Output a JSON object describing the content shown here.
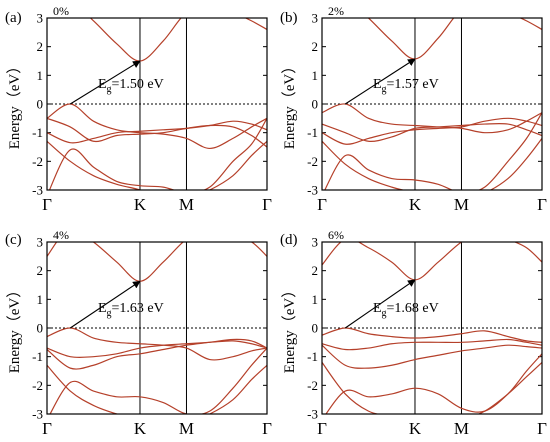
{
  "figure": {
    "band_color": "#b5402a",
    "axis_color": "#000000",
    "arrow_color": "#000000",
    "fermi_line_color": "#000000",
    "fermi_line_style": "dotted"
  },
  "chart_data": [
    {
      "type": "line",
      "panel_label": "(a)",
      "strain_label": "0%",
      "ylabel": "Energy（eV）",
      "ylim": [
        -3,
        3
      ],
      "yticks": [
        "3",
        "2",
        "1",
        "0",
        "-1",
        "-2",
        "-3"
      ],
      "xticks": [
        "Γ",
        "K",
        "M",
        "Γ"
      ],
      "x_tick_positions": [
        0,
        1,
        1.5,
        2.366
      ],
      "gap_label_main": "E",
      "gap_label_sub": "g",
      "gap_label_value": "=1.50 eV",
      "gap_ev": 1.5,
      "vbm": {
        "x": 0.25,
        "y": 0.0
      },
      "cbm": {
        "x": 1.0,
        "y": 1.5
      },
      "series": [
        {
          "x": [
            0,
            0.25,
            0.5,
            0.75,
            1.0,
            1.25,
            1.5,
            1.75,
            2.0,
            2.2,
            2.366
          ],
          "y": [
            -3.2,
            -1.6,
            -2.2,
            -2.7,
            -2.85,
            -2.9,
            -3.1,
            -2.9,
            -2.0,
            -1.4,
            -0.5
          ]
        },
        {
          "x": [
            0,
            0.25,
            0.5,
            0.75,
            1.0,
            1.25,
            1.5,
            1.75,
            2.0,
            2.2,
            2.366
          ],
          "y": [
            -0.5,
            0.0,
            -0.6,
            -0.9,
            -1.0,
            -1.05,
            -1.2,
            -1.55,
            -1.2,
            -0.8,
            -0.5
          ]
        },
        {
          "x": [
            0,
            0.25,
            0.5,
            0.75,
            1.0,
            1.25,
            1.5,
            1.75,
            2.0,
            2.2,
            2.366
          ],
          "y": [
            -0.5,
            -0.8,
            -1.3,
            -1.1,
            -1.05,
            -1.0,
            -0.85,
            -0.75,
            -0.8,
            -1.1,
            -1.5
          ]
        },
        {
          "x": [
            0,
            0.25,
            0.5,
            0.75,
            1.0,
            1.25,
            1.5,
            1.75,
            2.0,
            2.2,
            2.366
          ],
          "y": [
            -1.0,
            -1.35,
            -1.2,
            -1.0,
            -0.95,
            -0.9,
            -0.85,
            -0.75,
            -0.6,
            -0.7,
            -0.9
          ]
        },
        {
          "x": [
            0,
            0.25,
            0.5,
            0.75,
            1.0,
            1.25,
            1.5,
            1.75,
            2.0,
            2.2,
            2.366
          ],
          "y": [
            3.2,
            3.6,
            2.9,
            2.1,
            1.5,
            2.2,
            3.2,
            3.5,
            3.2,
            2.9,
            2.6
          ]
        },
        {
          "x": [
            0,
            0.25,
            0.5,
            0.75,
            1.0,
            1.25,
            1.5,
            1.75,
            2.0,
            2.2,
            2.366
          ],
          "y": [
            -1.3,
            -2.0,
            -2.5,
            -2.8,
            -3.0,
            -3.3,
            -3.3,
            -3.0,
            -2.5,
            -1.8,
            -1.3
          ]
        }
      ]
    },
    {
      "type": "line",
      "panel_label": "(b)",
      "strain_label": "2%",
      "ylabel": "Energy（eV）",
      "ylim": [
        -3,
        3
      ],
      "yticks": [
        "3",
        "2",
        "1",
        "0",
        "-1",
        "-2",
        "-3"
      ],
      "xticks": [
        "Γ",
        "K",
        "M",
        "Γ"
      ],
      "x_tick_positions": [
        0,
        1,
        1.5,
        2.366
      ],
      "gap_label_main": "E",
      "gap_label_sub": "g",
      "gap_label_value": "=1.57 eV",
      "gap_ev": 1.57,
      "vbm": {
        "x": 0.25,
        "y": 0.0
      },
      "cbm": {
        "x": 1.0,
        "y": 1.57
      },
      "series": [
        {
          "x": [
            0,
            0.25,
            0.5,
            0.75,
            1.0,
            1.25,
            1.5,
            1.75,
            2.0,
            2.2,
            2.366
          ],
          "y": [
            -3.2,
            -1.8,
            -2.3,
            -2.6,
            -2.65,
            -2.8,
            -3.1,
            -2.9,
            -2.0,
            -1.2,
            -0.3
          ]
        },
        {
          "x": [
            0,
            0.25,
            0.5,
            0.75,
            1.0,
            1.25,
            1.5,
            1.75,
            2.0,
            2.2,
            2.366
          ],
          "y": [
            -0.3,
            0.0,
            -0.5,
            -0.7,
            -0.75,
            -0.8,
            -0.85,
            -1.0,
            -0.9,
            -0.6,
            -0.3
          ]
        },
        {
          "x": [
            0,
            0.25,
            0.5,
            0.75,
            1.0,
            1.25,
            1.5,
            1.75,
            2.0,
            2.2,
            2.366
          ],
          "y": [
            -0.7,
            -1.0,
            -1.3,
            -1.15,
            -0.85,
            -0.8,
            -0.75,
            -0.7,
            -0.7,
            -0.9,
            -1.1
          ]
        },
        {
          "x": [
            0,
            0.25,
            0.5,
            0.75,
            1.0,
            1.25,
            1.5,
            1.75,
            2.0,
            2.2,
            2.366
          ],
          "y": [
            -1.0,
            -1.4,
            -1.2,
            -1.0,
            -0.9,
            -0.85,
            -0.8,
            -0.6,
            -0.5,
            -0.6,
            -0.75
          ]
        },
        {
          "x": [
            0,
            0.25,
            0.5,
            0.75,
            1.0,
            1.25,
            1.5,
            1.75,
            2.0,
            2.2,
            2.366
          ],
          "y": [
            3.2,
            3.7,
            3.0,
            2.2,
            1.57,
            2.3,
            3.3,
            3.6,
            3.2,
            2.9,
            2.6
          ]
        },
        {
          "x": [
            0,
            0.25,
            0.5,
            0.75,
            1.0,
            1.25,
            1.5,
            1.75,
            2.0,
            2.2,
            2.366
          ],
          "y": [
            -1.3,
            -2.1,
            -2.6,
            -2.9,
            -3.1,
            -3.3,
            -3.3,
            -3.1,
            -2.6,
            -1.9,
            -1.2
          ]
        }
      ]
    },
    {
      "type": "line",
      "panel_label": "(c)",
      "strain_label": "4%",
      "ylabel": "Energy（eV）",
      "ylim": [
        -3,
        3
      ],
      "yticks": [
        "3",
        "2",
        "1",
        "0",
        "-1",
        "-2",
        "-3"
      ],
      "xticks": [
        "Γ",
        "K",
        "M",
        "Γ"
      ],
      "x_tick_positions": [
        0,
        1,
        1.5,
        2.366
      ],
      "gap_label_main": "E",
      "gap_label_sub": "g",
      "gap_label_value": "=1.63 eV",
      "gap_ev": 1.63,
      "vbm": {
        "x": 0.25,
        "y": 0.0
      },
      "cbm": {
        "x": 1.0,
        "y": 1.63
      },
      "series": [
        {
          "x": [
            0,
            0.25,
            0.5,
            0.75,
            1.0,
            1.25,
            1.5,
            1.75,
            2.0,
            2.2,
            2.366
          ],
          "y": [
            -3.2,
            -1.9,
            -2.2,
            -2.4,
            -2.4,
            -2.6,
            -3.0,
            -2.9,
            -2.1,
            -1.3,
            -0.7
          ]
        },
        {
          "x": [
            0,
            0.25,
            0.5,
            0.75,
            1.0,
            1.25,
            1.5,
            1.75,
            2.0,
            2.2,
            2.366
          ],
          "y": [
            -0.3,
            0.0,
            -0.35,
            -0.5,
            -0.55,
            -0.6,
            -0.7,
            -1.1,
            -1.0,
            -0.8,
            -0.7
          ]
        },
        {
          "x": [
            0,
            0.25,
            0.5,
            0.75,
            1.0,
            1.25,
            1.5,
            1.75,
            2.0,
            2.2,
            2.366
          ],
          "y": [
            -0.7,
            -1.0,
            -1.0,
            -0.9,
            -0.7,
            -0.6,
            -0.55,
            -0.5,
            -0.45,
            -0.55,
            -0.7
          ]
        },
        {
          "x": [
            0,
            0.25,
            0.5,
            0.75,
            1.0,
            1.25,
            1.5,
            1.75,
            2.0,
            2.2,
            2.366
          ],
          "y": [
            -0.75,
            -1.4,
            -1.3,
            -1.0,
            -0.9,
            -0.75,
            -0.6,
            -0.5,
            -0.4,
            -0.45,
            -0.7
          ]
        },
        {
          "x": [
            0,
            0.25,
            0.5,
            0.75,
            1.0,
            1.25,
            1.5,
            1.75,
            2.0,
            2.2,
            2.366
          ],
          "y": [
            2.5,
            3.5,
            3.0,
            2.3,
            1.63,
            2.3,
            3.1,
            3.5,
            3.2,
            3.0,
            2.5
          ]
        },
        {
          "x": [
            0,
            0.25,
            0.5,
            0.75,
            1.0,
            1.25,
            1.5,
            1.75,
            2.0,
            2.2,
            2.366
          ],
          "y": [
            -1.3,
            -2.2,
            -2.7,
            -3.0,
            -3.2,
            -3.3,
            -3.3,
            -3.0,
            -2.5,
            -1.8,
            -1.3
          ]
        }
      ]
    },
    {
      "type": "line",
      "panel_label": "(d)",
      "strain_label": "6%",
      "ylabel": "Energy（eV）",
      "ylim": [
        -3,
        3
      ],
      "yticks": [
        "3",
        "2",
        "1",
        "0",
        "-1",
        "-2",
        "-3"
      ],
      "xticks": [
        "Γ",
        "K",
        "M",
        "Γ"
      ],
      "x_tick_positions": [
        0,
        1,
        1.5,
        2.366
      ],
      "gap_label_main": "E",
      "gap_label_sub": "g",
      "gap_label_value": "=1.68 eV",
      "gap_ev": 1.68,
      "vbm": {
        "x": 0.25,
        "y": 0.0
      },
      "cbm": {
        "x": 1.0,
        "y": 1.68
      },
      "series": [
        {
          "x": [
            0,
            0.25,
            0.5,
            0.75,
            1.0,
            1.25,
            1.5,
            1.75,
            2.0,
            2.2,
            2.366
          ],
          "y": [
            -3.2,
            -2.2,
            -2.4,
            -2.3,
            -2.1,
            -2.3,
            -2.8,
            -2.9,
            -2.3,
            -1.5,
            -0.9
          ]
        },
        {
          "x": [
            0,
            0.25,
            0.5,
            0.75,
            1.0,
            1.25,
            1.5,
            1.75,
            2.0,
            2.2,
            2.366
          ],
          "y": [
            -0.25,
            0.0,
            -0.2,
            -0.3,
            -0.35,
            -0.3,
            -0.2,
            -0.1,
            -0.3,
            -0.45,
            -0.5
          ]
        },
        {
          "x": [
            0,
            0.25,
            0.5,
            0.75,
            1.0,
            1.25,
            1.5,
            1.75,
            2.0,
            2.2,
            2.366
          ],
          "y": [
            -0.55,
            -0.75,
            -0.7,
            -0.55,
            -0.5,
            -0.5,
            -0.5,
            -0.45,
            -0.4,
            -0.5,
            -0.6
          ]
        },
        {
          "x": [
            0,
            0.25,
            0.5,
            0.75,
            1.0,
            1.25,
            1.5,
            1.75,
            2.0,
            2.2,
            2.366
          ],
          "y": [
            -0.6,
            -1.3,
            -1.4,
            -1.3,
            -1.1,
            -0.95,
            -0.8,
            -0.7,
            -0.6,
            -0.65,
            -0.7
          ]
        },
        {
          "x": [
            0,
            0.25,
            0.5,
            0.75,
            1.0,
            1.25,
            1.5,
            1.75,
            2.0,
            2.2,
            2.366
          ],
          "y": [
            2.2,
            3.1,
            2.8,
            2.3,
            1.68,
            2.3,
            3.0,
            3.4,
            3.1,
            2.8,
            2.3
          ]
        },
        {
          "x": [
            0,
            0.25,
            0.5,
            0.75,
            1.0,
            1.25,
            1.5,
            1.75,
            2.0,
            2.2,
            2.366
          ],
          "y": [
            -1.2,
            -2.3,
            -2.9,
            -3.1,
            -3.3,
            -3.3,
            -3.2,
            -2.9,
            -2.3,
            -1.7,
            -1.2
          ]
        }
      ]
    }
  ]
}
